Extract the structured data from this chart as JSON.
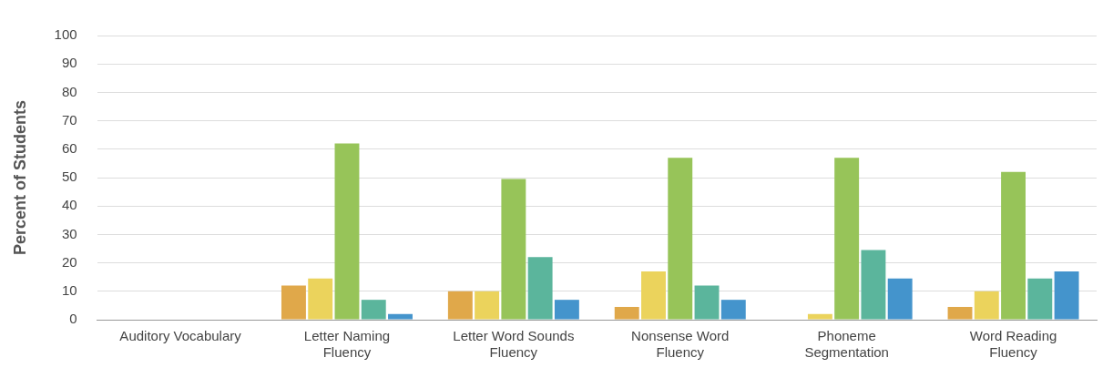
{
  "chart_data": {
    "type": "bar",
    "ylabel": "Percent of Students",
    "categories": [
      "Auditory Vocabulary",
      "Letter Naming Fluency",
      "Letter Word Sounds Fluency",
      "Nonsense Word Fluency",
      "Phoneme Segmentation",
      "Word Reading Fluency"
    ],
    "series": [
      {
        "color": "#e0a84a",
        "values": [
          null,
          12,
          10,
          4.5,
          null,
          4.5
        ]
      },
      {
        "color": "#ebd35c",
        "values": [
          null,
          14.5,
          10,
          17,
          2,
          10
        ]
      },
      {
        "color": "#97c459",
        "values": [
          null,
          62,
          49.5,
          57,
          57,
          52
        ]
      },
      {
        "color": "#5bb59c",
        "values": [
          null,
          7,
          22,
          12,
          24.5,
          14.5
        ]
      },
      {
        "color": "#4494cc",
        "values": [
          null,
          2,
          7,
          7,
          14.5,
          17
        ]
      }
    ],
    "ylim": [
      0,
      100
    ],
    "yticks": [
      0,
      10,
      20,
      30,
      40,
      50,
      60,
      70,
      80,
      90,
      100
    ],
    "grid": "y",
    "legend": false
  }
}
